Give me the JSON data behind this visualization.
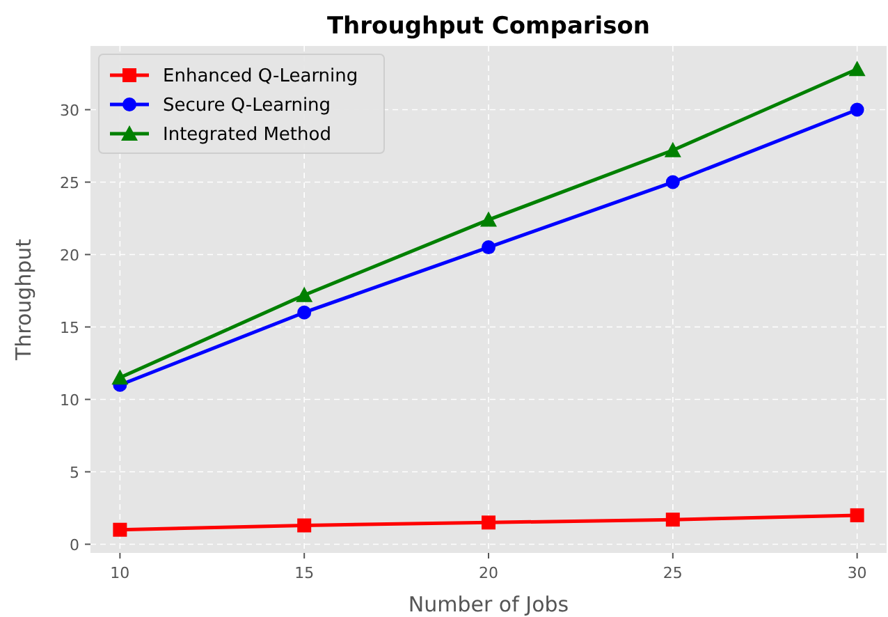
{
  "chart_data": {
    "type": "line",
    "title": "Throughput Comparison",
    "xlabel": "Number of Jobs",
    "ylabel": "Throughput",
    "x": [
      10,
      15,
      20,
      25,
      30
    ],
    "series": [
      {
        "name": "Enhanced Q-Learning",
        "color": "#ff0000",
        "marker": "square",
        "values": [
          1.0,
          1.3,
          1.5,
          1.7,
          2.0
        ]
      },
      {
        "name": "Secure Q-Learning",
        "color": "#0000ff",
        "marker": "circle",
        "values": [
          11,
          16,
          20.5,
          25,
          30
        ]
      },
      {
        "name": "Integrated Method",
        "color": "#008000",
        "marker": "triangle",
        "values": [
          11.5,
          17.2,
          22.4,
          27.2,
          32.8
        ]
      }
    ],
    "xlim": [
      9.2,
      30.8
    ],
    "xticks": [
      10,
      15,
      20,
      25,
      30
    ],
    "ylim": [
      -0.6,
      34.4
    ],
    "yticks": [
      0,
      5,
      10,
      15,
      20,
      25,
      30
    ],
    "grid": true,
    "legend": "top left",
    "line_style": "solid"
  }
}
